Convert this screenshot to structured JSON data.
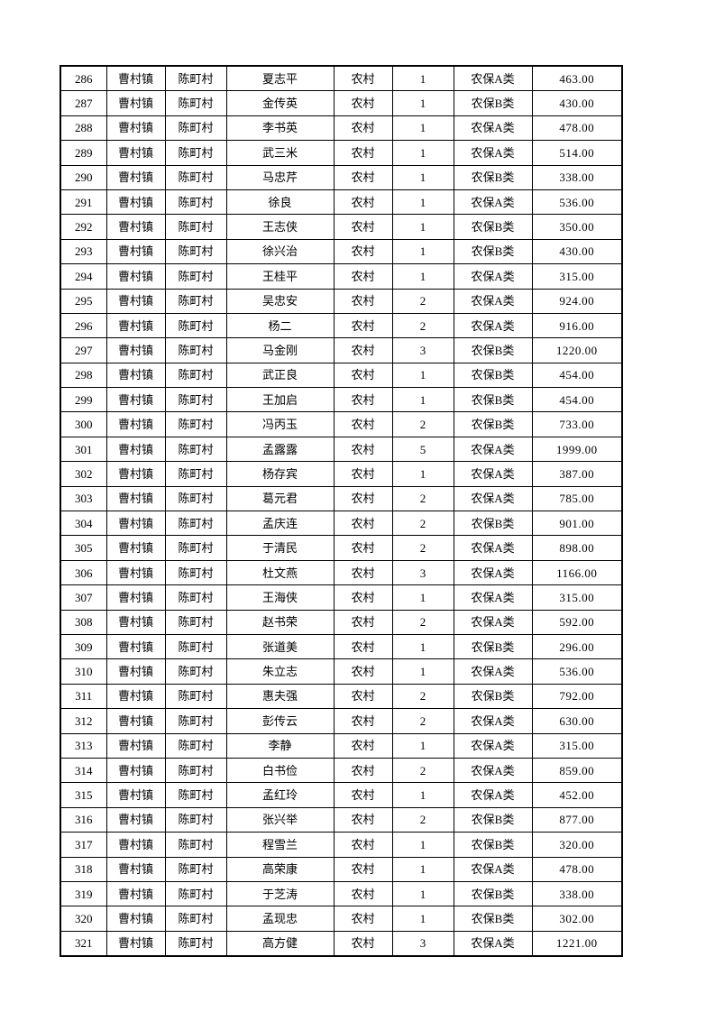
{
  "page": {
    "kind": "printed-table-page",
    "background_color": "#ffffff",
    "text_color": "#000000",
    "border_color": "#000000"
  },
  "table": {
    "cell_names": [
      "row-number-cell",
      "town-cell",
      "village-cell",
      "person-name-cell",
      "area-type-cell",
      "person-count-cell",
      "insurance-category-cell",
      "amount-cell"
    ],
    "rows": [
      [
        "286",
        "曹村镇",
        "陈町村",
        "夏志平",
        "农村",
        "1",
        "农保A类",
        "463.00"
      ],
      [
        "287",
        "曹村镇",
        "陈町村",
        "金传英",
        "农村",
        "1",
        "农保B类",
        "430.00"
      ],
      [
        "288",
        "曹村镇",
        "陈町村",
        "李书英",
        "农村",
        "1",
        "农保A类",
        "478.00"
      ],
      [
        "289",
        "曹村镇",
        "陈町村",
        "武三米",
        "农村",
        "1",
        "农保A类",
        "514.00"
      ],
      [
        "290",
        "曹村镇",
        "陈町村",
        "马忠芹",
        "农村",
        "1",
        "农保B类",
        "338.00"
      ],
      [
        "291",
        "曹村镇",
        "陈町村",
        "徐良",
        "农村",
        "1",
        "农保A类",
        "536.00"
      ],
      [
        "292",
        "曹村镇",
        "陈町村",
        "王志侠",
        "农村",
        "1",
        "农保B类",
        "350.00"
      ],
      [
        "293",
        "曹村镇",
        "陈町村",
        "徐兴治",
        "农村",
        "1",
        "农保B类",
        "430.00"
      ],
      [
        "294",
        "曹村镇",
        "陈町村",
        "王桂平",
        "农村",
        "1",
        "农保A类",
        "315.00"
      ],
      [
        "295",
        "曹村镇",
        "陈町村",
        "吴忠安",
        "农村",
        "2",
        "农保A类",
        "924.00"
      ],
      [
        "296",
        "曹村镇",
        "陈町村",
        "杨二",
        "农村",
        "2",
        "农保A类",
        "916.00"
      ],
      [
        "297",
        "曹村镇",
        "陈町村",
        "马金刚",
        "农村",
        "3",
        "农保B类",
        "1220.00"
      ],
      [
        "298",
        "曹村镇",
        "陈町村",
        "武正良",
        "农村",
        "1",
        "农保B类",
        "454.00"
      ],
      [
        "299",
        "曹村镇",
        "陈町村",
        "王加启",
        "农村",
        "1",
        "农保B类",
        "454.00"
      ],
      [
        "300",
        "曹村镇",
        "陈町村",
        "冯丙玉",
        "农村",
        "2",
        "农保B类",
        "733.00"
      ],
      [
        "301",
        "曹村镇",
        "陈町村",
        "孟露露",
        "农村",
        "5",
        "农保A类",
        "1999.00"
      ],
      [
        "302",
        "曹村镇",
        "陈町村",
        "杨存宾",
        "农村",
        "1",
        "农保A类",
        "387.00"
      ],
      [
        "303",
        "曹村镇",
        "陈町村",
        "葛元君",
        "农村",
        "2",
        "农保A类",
        "785.00"
      ],
      [
        "304",
        "曹村镇",
        "陈町村",
        "孟庆连",
        "农村",
        "2",
        "农保B类",
        "901.00"
      ],
      [
        "305",
        "曹村镇",
        "陈町村",
        "于清民",
        "农村",
        "2",
        "农保A类",
        "898.00"
      ],
      [
        "306",
        "曹村镇",
        "陈町村",
        "杜文燕",
        "农村",
        "3",
        "农保A类",
        "1166.00"
      ],
      [
        "307",
        "曹村镇",
        "陈町村",
        "王海侠",
        "农村",
        "1",
        "农保A类",
        "315.00"
      ],
      [
        "308",
        "曹村镇",
        "陈町村",
        "赵书荣",
        "农村",
        "2",
        "农保A类",
        "592.00"
      ],
      [
        "309",
        "曹村镇",
        "陈町村",
        "张道美",
        "农村",
        "1",
        "农保B类",
        "296.00"
      ],
      [
        "310",
        "曹村镇",
        "陈町村",
        "朱立志",
        "农村",
        "1",
        "农保A类",
        "536.00"
      ],
      [
        "311",
        "曹村镇",
        "陈町村",
        "惠夫强",
        "农村",
        "2",
        "农保B类",
        "792.00"
      ],
      [
        "312",
        "曹村镇",
        "陈町村",
        "彭传云",
        "农村",
        "2",
        "农保A类",
        "630.00"
      ],
      [
        "313",
        "曹村镇",
        "陈町村",
        "李静",
        "农村",
        "1",
        "农保A类",
        "315.00"
      ],
      [
        "314",
        "曹村镇",
        "陈町村",
        "白书俭",
        "农村",
        "2",
        "农保A类",
        "859.00"
      ],
      [
        "315",
        "曹村镇",
        "陈町村",
        "孟红玲",
        "农村",
        "1",
        "农保A类",
        "452.00"
      ],
      [
        "316",
        "曹村镇",
        "陈町村",
        "张兴举",
        "农村",
        "2",
        "农保B类",
        "877.00"
      ],
      [
        "317",
        "曹村镇",
        "陈町村",
        "程雪兰",
        "农村",
        "1",
        "农保B类",
        "320.00"
      ],
      [
        "318",
        "曹村镇",
        "陈町村",
        "高荣康",
        "农村",
        "1",
        "农保A类",
        "478.00"
      ],
      [
        "319",
        "曹村镇",
        "陈町村",
        "于芝涛",
        "农村",
        "1",
        "农保B类",
        "338.00"
      ],
      [
        "320",
        "曹村镇",
        "陈町村",
        "孟现忠",
        "农村",
        "1",
        "农保B类",
        "302.00"
      ],
      [
        "321",
        "曹村镇",
        "陈町村",
        "高方健",
        "农村",
        "3",
        "农保A类",
        "1221.00"
      ]
    ]
  }
}
